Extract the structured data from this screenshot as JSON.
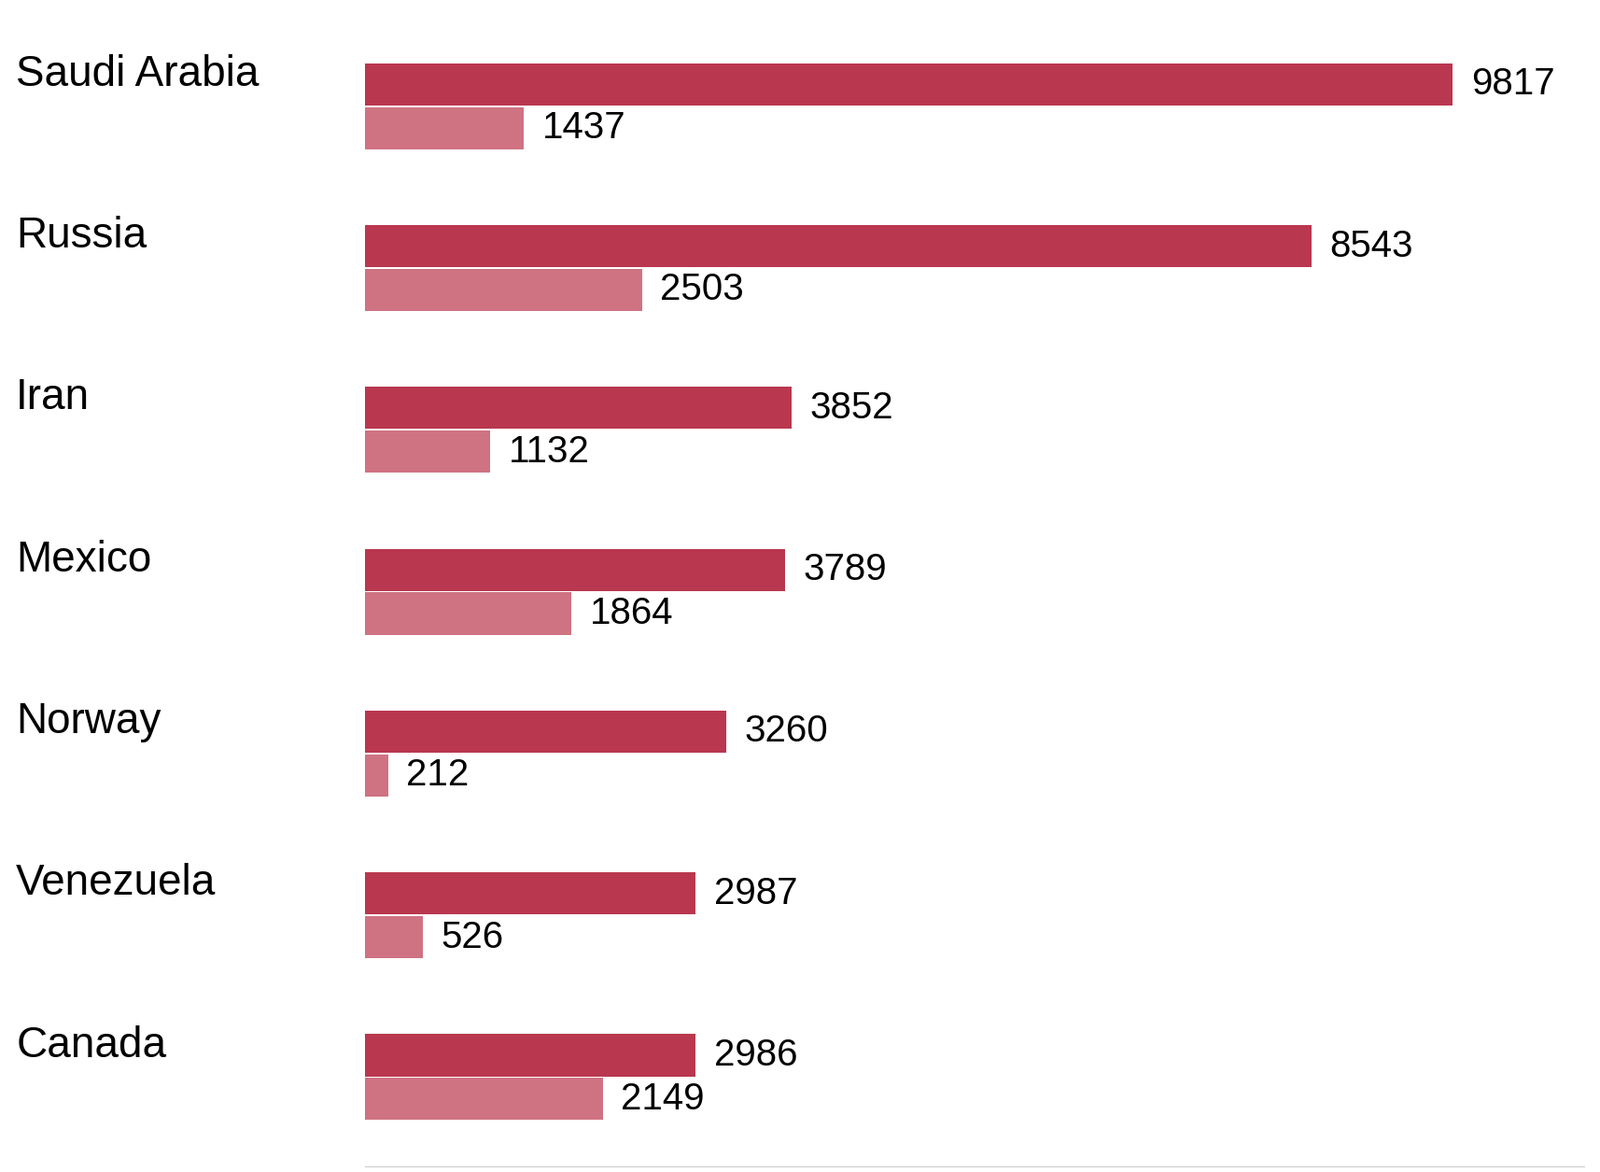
{
  "chart_data": {
    "type": "bar",
    "orientation": "horizontal",
    "categories": [
      "Saudi Arabia",
      "Russia",
      "Iran",
      "Mexico",
      "Norway",
      "Venezuela",
      "Canada"
    ],
    "series": [
      {
        "color": "#b9374f",
        "values": [
          9817,
          8543,
          3852,
          3789,
          3260,
          2987,
          2986
        ]
      },
      {
        "color": "#cf7282",
        "values": [
          1437,
          2503,
          1132,
          1864,
          212,
          526,
          2149
        ]
      }
    ],
    "xlim": [
      0,
      11000
    ],
    "data_labels": true,
    "tick_labels": false,
    "grid": false
  }
}
